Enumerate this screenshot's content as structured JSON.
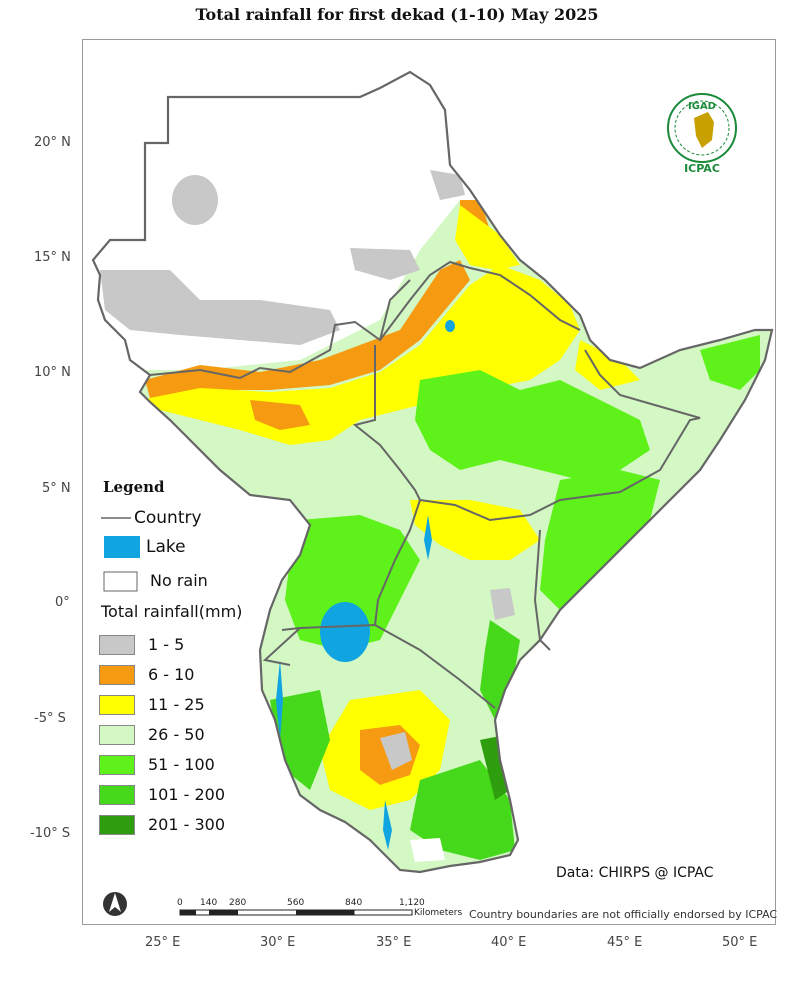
{
  "title": "Total rainfall   for   first dekad (1-10)  May 2025",
  "latitude_ticks": [
    "20° N",
    "15° N",
    "10° N",
    "5° N",
    "0°",
    "-5° S",
    "-10° S"
  ],
  "longitude_ticks": [
    "25° E",
    "30° E",
    "35° E",
    "40° E",
    "45° E",
    "50° E"
  ],
  "legend": {
    "title": "Legend",
    "country_label": "Country",
    "lake_label": "Lake",
    "no_rain_label": "No rain",
    "rainfall_title": "Total rainfall(mm)",
    "classes": [
      {
        "label": "1 - 5",
        "color": "#c8c8c8"
      },
      {
        "label": "6 - 10",
        "color": "#f59a11"
      },
      {
        "label": "11 - 25",
        "color": "#ffff00"
      },
      {
        "label": "26 - 50",
        "color": "#d3f8c4"
      },
      {
        "label": "51 - 100",
        "color": "#5ef21a"
      },
      {
        "label": "101 - 200",
        "color": "#46d91b"
      },
      {
        "label": "201 - 300",
        "color": "#2f9e0e"
      }
    ],
    "lake_color": "#10a5e0",
    "country_color": "#666666"
  },
  "logo": {
    "top_text": "IGAD",
    "bottom_text": "ICPAC"
  },
  "scale_bar": {
    "labels": [
      "0",
      "140",
      "280",
      "560",
      "840",
      "1,120"
    ],
    "unit": "Kilometers"
  },
  "data_source": "Data: CHIRPS @ ICPAC",
  "disclaimer": "Country boundaries are not officially endorsed by ICPAC",
  "north_arrow": "north-arrow-icon"
}
